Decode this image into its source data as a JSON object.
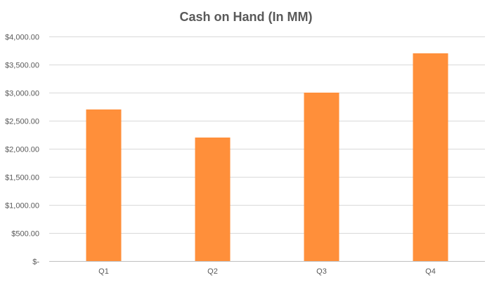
{
  "chart_data": {
    "type": "bar",
    "title": "Cash on Hand (In MM)",
    "xlabel": "",
    "ylabel": "",
    "categories": [
      "Q1",
      "Q2",
      "Q3",
      "Q4"
    ],
    "values": [
      2700,
      2200,
      3000,
      3700
    ],
    "ylim": [
      0,
      4000
    ],
    "y_ticks": [
      0,
      500,
      1000,
      1500,
      2000,
      2500,
      3000,
      3500,
      4000
    ],
    "y_tick_labels": [
      "$-",
      "$500.00",
      "$1,000.00",
      "$1,500.00",
      "$2,000.00",
      "$2,500.00",
      "$3,000.00",
      "$3,500.00",
      "$4,000.00"
    ],
    "bar_color": "#FF8F3A",
    "gridline_color": "#D9D9D9",
    "grid": true,
    "legend": "none"
  }
}
